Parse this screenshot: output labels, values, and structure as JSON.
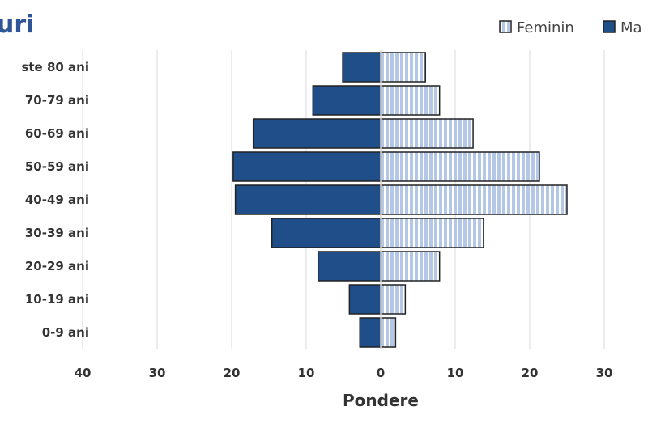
{
  "chart_data": {
    "type": "bar",
    "orientation": "horizontal",
    "subtype": "population-pyramid",
    "title": "uri",
    "xlabel": "Pondere",
    "ylabel": "",
    "categories": [
      "ste 80 ani",
      "70-79 ani",
      "60-69 ani",
      "50-59 ani",
      "40-49 ani",
      "30-39 ani",
      "20-29 ani",
      "10-19 ani",
      "0-9 ani"
    ],
    "series": [
      {
        "name": "Ma",
        "side": "left",
        "color": "#1f4e89",
        "values": [
          5.1,
          9.1,
          17.1,
          19.8,
          19.5,
          14.6,
          8.4,
          4.2,
          2.8
        ]
      },
      {
        "name": "Feminin",
        "side": "right",
        "color": "#b4c7e7",
        "pattern": "vertical-stripes",
        "values": [
          6.0,
          7.9,
          12.4,
          21.3,
          25.0,
          13.8,
          7.9,
          3.3,
          2.0
        ]
      }
    ],
    "xlim": [
      -40,
      30
    ],
    "xticks": [
      -40,
      -30,
      -20,
      -10,
      0,
      10,
      20,
      30
    ],
    "xtick_labels": [
      "40",
      "30",
      "20",
      "10",
      "0",
      "10",
      "20",
      "30"
    ],
    "grid": true,
    "legend_position": "top-right",
    "title_color": "#2e5597"
  }
}
